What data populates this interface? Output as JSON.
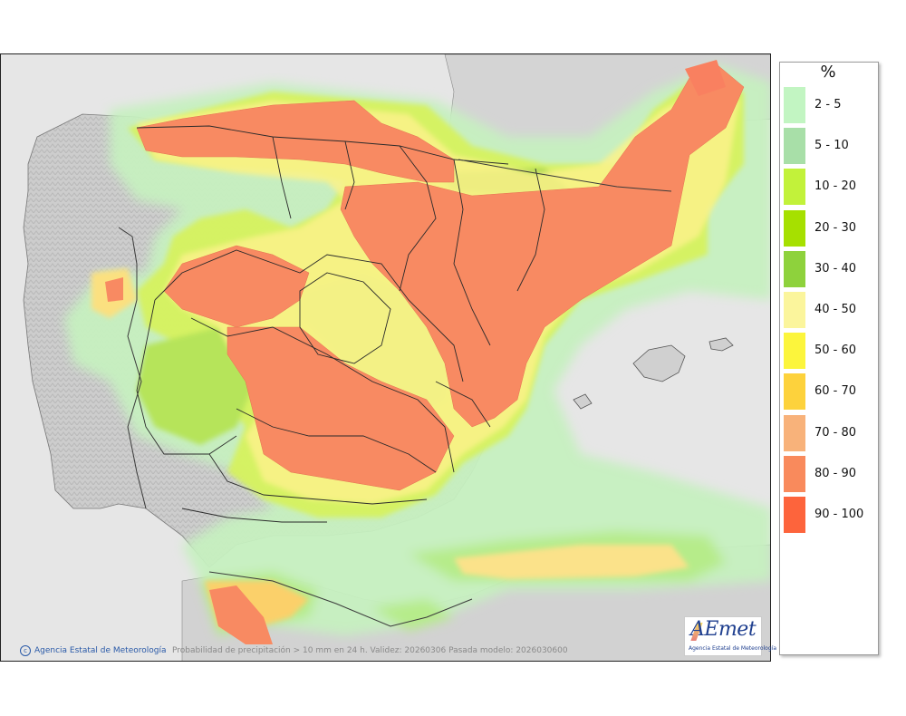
{
  "map": {
    "description_text": "Probabilidad de precipitación > 10 mm en 24 h. Validez: 20260306 Pasada modelo: 2026030600",
    "credit": "Agencia Estatal de Meteorología",
    "logo": {
      "name": "AEmet",
      "subtitle": "Agencia Estatal de Meteorología"
    }
  },
  "legend": {
    "unit": "%",
    "items": [
      {
        "label": "2 - 5",
        "color": "#c2f5c2"
      },
      {
        "label": "5 - 10",
        "color": "#a8dfa8"
      },
      {
        "label": "10 - 20",
        "color": "#c2f23a"
      },
      {
        "label": "20 - 30",
        "color": "#a6e000"
      },
      {
        "label": "30 - 40",
        "color": "#8ed23c"
      },
      {
        "label": "40 - 50",
        "color": "#fbf59c"
      },
      {
        "label": "50 - 60",
        "color": "#fcf53c"
      },
      {
        "label": "60 - 70",
        "color": "#fdd23c"
      },
      {
        "label": "70 - 80",
        "color": "#f8b27a"
      },
      {
        "label": "80 - 90",
        "color": "#f98a5c"
      },
      {
        "label": "90 - 100",
        "color": "#fd643c"
      }
    ]
  },
  "colors": {
    "land": "#cfcfcf",
    "sea": "#e6e6e6",
    "border": "#333333"
  }
}
